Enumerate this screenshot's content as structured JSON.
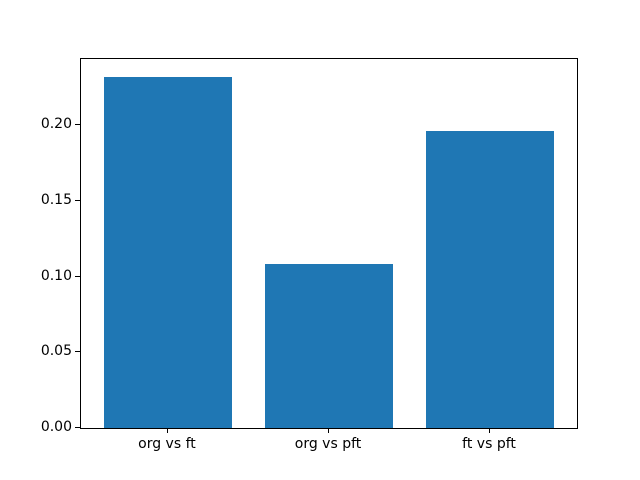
{
  "figure": {
    "background": "#ffffff",
    "text_color": "#000000",
    "spine_color": "#000000"
  },
  "chart_data": {
    "type": "bar",
    "categories": [
      "org vs ft",
      "org vs pft",
      "ft vs pft"
    ],
    "values": [
      0.232,
      0.108,
      0.196
    ],
    "title": "",
    "xlabel": "",
    "ylabel": "",
    "ytick_labels": [
      "0.00",
      "0.05",
      "0.10",
      "0.15",
      "0.20"
    ],
    "yticks": [
      0.0,
      0.05,
      0.1,
      0.15,
      0.2
    ],
    "ylim": [
      0,
      0.2436
    ],
    "xlim": [
      -0.54,
      2.54
    ],
    "bar_width": 0.8,
    "bar_color": "#1f77b4",
    "grid": false,
    "legend": null
  }
}
